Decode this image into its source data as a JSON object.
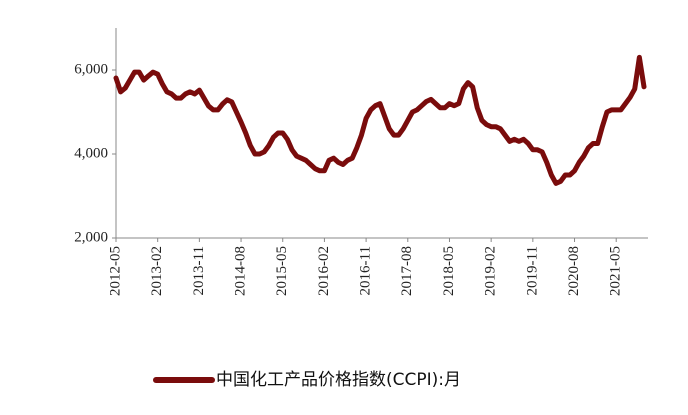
{
  "chart_data": {
    "type": "line",
    "categories": [
      "2012-05",
      null,
      null,
      null,
      null,
      null,
      null,
      null,
      null,
      "2013-02",
      null,
      null,
      null,
      null,
      null,
      null,
      null,
      null,
      "2013-11",
      null,
      null,
      null,
      null,
      null,
      null,
      null,
      null,
      "2014-08",
      null,
      null,
      null,
      null,
      null,
      null,
      null,
      null,
      "2015-05",
      null,
      null,
      null,
      null,
      null,
      null,
      null,
      null,
      "2016-02",
      null,
      null,
      null,
      null,
      null,
      null,
      null,
      null,
      "2016-11",
      null,
      null,
      null,
      null,
      null,
      null,
      null,
      null,
      "2017-08",
      null,
      null,
      null,
      null,
      null,
      null,
      null,
      null,
      "2018-05",
      null,
      null,
      null,
      null,
      null,
      null,
      null,
      null,
      "2019-02",
      null,
      null,
      null,
      null,
      null,
      null,
      null,
      null,
      "2019-11",
      null,
      null,
      null,
      null,
      null,
      null,
      null,
      null,
      "2020-08",
      null,
      null,
      null,
      null,
      null,
      null,
      null,
      null,
      "2021-05",
      null,
      null,
      null,
      null,
      null,
      null
    ],
    "series": [
      {
        "name": "中国化工产品价格指数(CCPI):月",
        "color": "#7a0c0c",
        "values": [
          5810,
          5480,
          5570,
          5760,
          5950,
          5950,
          5760,
          5860,
          5950,
          5900,
          5670,
          5480,
          5430,
          5330,
          5330,
          5430,
          5480,
          5430,
          5520,
          5330,
          5140,
          5050,
          5050,
          5190,
          5290,
          5240,
          5000,
          4760,
          4500,
          4200,
          4000,
          4000,
          4050,
          4200,
          4400,
          4500,
          4500,
          4350,
          4100,
          3950,
          3900,
          3850,
          3750,
          3650,
          3600,
          3600,
          3850,
          3900,
          3800,
          3750,
          3850,
          3900,
          4150,
          4450,
          4850,
          5050,
          5150,
          5200,
          4900,
          4600,
          4450,
          4450,
          4600,
          4800,
          5000,
          5050,
          5150,
          5250,
          5300,
          5200,
          5100,
          5100,
          5200,
          5150,
          5200,
          5550,
          5700,
          5600,
          5100,
          4800,
          4700,
          4650,
          4650,
          4600,
          4450,
          4300,
          4350,
          4300,
          4350,
          4250,
          4100,
          4100,
          4050,
          3800,
          3500,
          3300,
          3350,
          3500,
          3500,
          3600,
          3800,
          3950,
          4150,
          4250,
          4250,
          4650,
          5000,
          5050,
          5050,
          5050,
          5200,
          5350,
          5550,
          6300,
          5600
        ]
      }
    ],
    "ylim": [
      2000,
      7000
    ],
    "yticks": [
      {
        "value": 2000,
        "label": "2,000"
      },
      {
        "value": 4000,
        "label": "4,000"
      },
      {
        "value": 6000,
        "label": "6,000"
      }
    ],
    "legend": "bottom"
  }
}
